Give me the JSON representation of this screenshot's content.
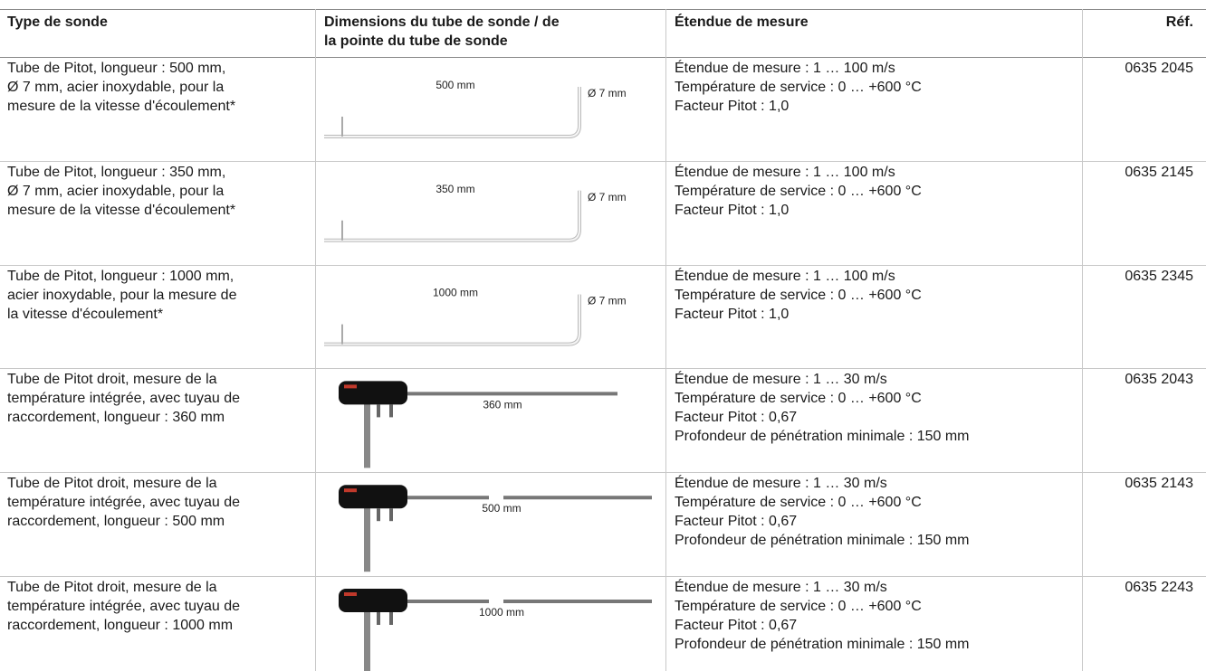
{
  "table": {
    "header": [
      "Type de sonde",
      [
        "Dimensions du tube de sonde / de",
        "la pointe du tube de sonde"
      ],
      "Étendue de mesure",
      "Réf."
    ],
    "rows": [
      {
        "type": [
          "Tube de Pitot, longueur : 500 mm,",
          "Ø 7 mm, acier inoxydable, pour la",
          "mesure de la vitesse d'écoulement*"
        ],
        "length": "500 mm",
        "diameter": "Ø 7 mm",
        "range": [
          "Étendue de mesure : 1 … 100 m/s",
          "Température de service : 0 … +600 °C",
          "Facteur Pitot : 1,0"
        ],
        "ref": "0635 2045"
      },
      {
        "type": [
          "Tube de Pitot, longueur : 350 mm,",
          "Ø 7 mm, acier inoxydable, pour la",
          "mesure de la vitesse d'écoulement*"
        ],
        "length": "350 mm",
        "diameter": "Ø 7 mm",
        "range": [
          "Étendue de mesure : 1 … 100 m/s",
          "Température de service : 0 … +600 °C",
          "Facteur Pitot : 1,0"
        ],
        "ref": "0635 2145"
      },
      {
        "type": [
          "Tube de Pitot, longueur : 1000 mm,",
          "acier inoxydable, pour la mesure de",
          "la vitesse d'écoulement*"
        ],
        "length": "1000 mm",
        "diameter": "Ø 7 mm",
        "range": [
          "Étendue de mesure : 1 … 100 m/s",
          "Température de service : 0 … +600 °C",
          "Facteur Pitot : 1,0"
        ],
        "ref": "0635 2345"
      },
      {
        "type": [
          "Tube de Pitot droit, mesure de la",
          "température intégrée, avec tuyau de",
          "raccordement, longueur : 360 mm"
        ],
        "length": "360 mm",
        "range": [
          "Étendue de mesure : 1 … 30 m/s",
          "Température de service : 0 … +600 °C",
          "Facteur Pitot : 0,67",
          "Profondeur de pénétration minimale : 150 mm"
        ],
        "ref": "0635 2043"
      },
      {
        "type": [
          "Tube de Pitot droit, mesure de la",
          "température intégrée, avec tuyau de",
          "raccordement, longueur : 500 mm"
        ],
        "length": "500 mm",
        "range": [
          "Étendue de mesure : 1 … 30 m/s",
          "Température de service : 0 … +600 °C",
          "Facteur Pitot : 0,67",
          "Profondeur de pénétration minimale : 150 mm"
        ],
        "ref": "0635 2143"
      },
      {
        "type": [
          "Tube de Pitot droit, mesure de la",
          "température intégrée, avec tuyau de",
          "raccordement, longueur : 1000 mm"
        ],
        "length": "1000 mm",
        "range": [
          "Étendue de mesure : 1 … 30 m/s",
          "Température de service : 0 … +600 °C",
          "Facteur Pitot : 0,67",
          "Profondeur de pénétration minimale : 150 mm"
        ],
        "ref": "0635 2243"
      }
    ]
  }
}
